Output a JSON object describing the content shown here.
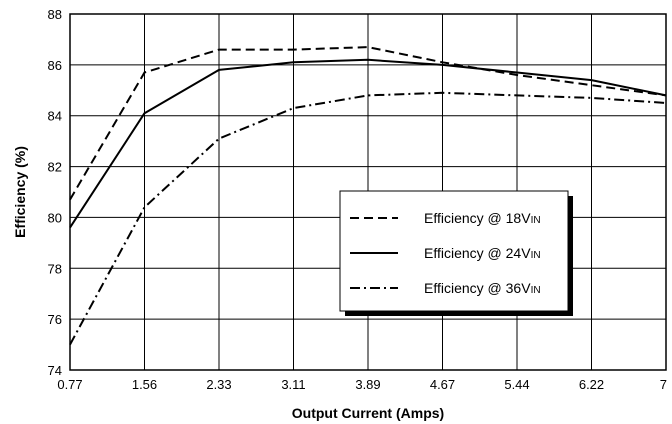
{
  "chart_data": {
    "type": "line",
    "title": "",
    "xlabel": "Output Current (Amps)",
    "ylabel": "Efficiency (%)",
    "x": [
      0.77,
      1.56,
      2.33,
      3.11,
      3.89,
      4.67,
      5.44,
      6.22,
      7
    ],
    "x_tick_labels": [
      "0.77",
      "1.56",
      "2.33",
      "3.11",
      "3.89",
      "4.67",
      "5.44",
      "6.22",
      "7"
    ],
    "y_ticks": [
      74,
      76,
      78,
      80,
      82,
      84,
      86,
      88
    ],
    "ylim": [
      74,
      88
    ],
    "grid": true,
    "legend_position": "bottom-right",
    "series": [
      {
        "name": "Efficiency @ 18V",
        "name_sub": "IN",
        "dash": "dashed",
        "values": [
          80.7,
          85.7,
          86.6,
          86.6,
          86.7,
          86.1,
          85.6,
          85.2,
          84.8
        ]
      },
      {
        "name": "Efficiency @ 24V",
        "name_sub": "IN",
        "dash": "solid",
        "values": [
          79.6,
          84.1,
          85.8,
          86.1,
          86.2,
          86.0,
          85.7,
          85.4,
          84.8
        ]
      },
      {
        "name": "Efficiency @ 36V",
        "name_sub": "IN",
        "dash": "dashdot",
        "values": [
          75.0,
          80.4,
          83.1,
          84.3,
          84.8,
          84.9,
          84.8,
          84.7,
          84.5
        ]
      }
    ]
  }
}
